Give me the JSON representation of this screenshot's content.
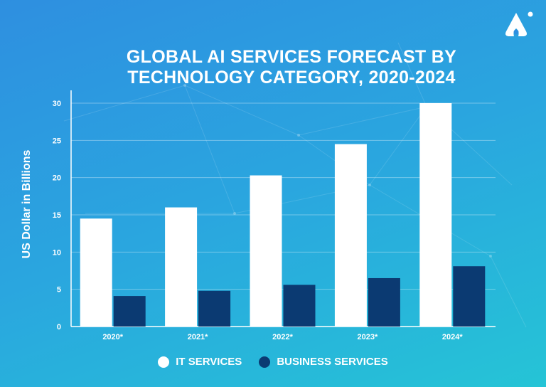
{
  "chart_data": {
    "type": "bar",
    "title_lines": [
      "GLOBAL AI SERVICES FORECAST BY",
      "TECHNOLOGY CATEGORY, 2020-2024"
    ],
    "xlabel": "",
    "ylabel": "US Dollar in Billions",
    "categories": [
      "2020*",
      "2021*",
      "2022*",
      "2023*",
      "2024*"
    ],
    "yticks": [
      0,
      5,
      10,
      15,
      20,
      25,
      30
    ],
    "ylim": [
      0,
      30
    ],
    "grid": true,
    "legend_position": "bottom-center",
    "series": [
      {
        "name": "IT SERVICES",
        "color": "#ffffff",
        "values": [
          14.5,
          16,
          20.3,
          24.5,
          30
        ]
      },
      {
        "name": "BUSINESS SERVICES",
        "color": "#0b3a72",
        "values": [
          4.1,
          4.8,
          5.6,
          6.5,
          8.1
        ]
      }
    ]
  },
  "logo": {
    "name": "brand-logo"
  }
}
